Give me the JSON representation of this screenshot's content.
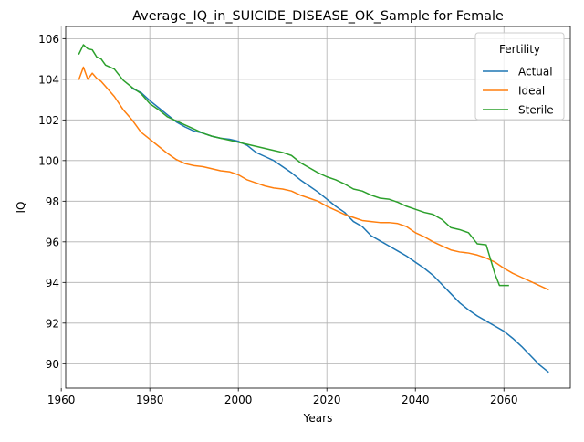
{
  "chart_data": {
    "type": "line",
    "title": "Average_IQ_in_SUICIDE_DISEASE_OK_Sample for Female",
    "xlabel": "Years",
    "ylabel": "IQ",
    "xlim": [
      1961,
      2075
    ],
    "ylim": [
      88.8,
      106.6
    ],
    "xticks": [
      1960,
      1980,
      2000,
      2020,
      2040,
      2060
    ],
    "yticks": [
      90,
      92,
      94,
      96,
      98,
      100,
      102,
      104,
      106
    ],
    "grid": true,
    "legend": {
      "title": "Fertility",
      "placement": "top-right"
    },
    "series": [
      {
        "name": "Actual",
        "color": "#1f77b4",
        "x": [
          1976,
          1978,
          1980,
          1982,
          1984,
          1986,
          1988,
          1990,
          1992,
          1994,
          1996,
          1998,
          2000,
          2002,
          2004,
          2006,
          2008,
          2010,
          2012,
          2014,
          2016,
          2018,
          2020,
          2022,
          2024,
          2026,
          2028,
          2030,
          2032,
          2034,
          2036,
          2038,
          2040,
          2042,
          2044,
          2046,
          2048,
          2050,
          2052,
          2054,
          2056,
          2058,
          2060,
          2062,
          2064,
          2066,
          2068,
          2070
        ],
        "y": [
          103.55,
          103.35,
          102.95,
          102.6,
          102.25,
          101.9,
          101.65,
          101.45,
          101.35,
          101.2,
          101.1,
          101.05,
          100.95,
          100.75,
          100.4,
          100.2,
          100.0,
          99.7,
          99.4,
          99.05,
          98.75,
          98.45,
          98.1,
          97.75,
          97.45,
          97.0,
          96.75,
          96.3,
          96.05,
          95.8,
          95.55,
          95.3,
          95.0,
          94.7,
          94.35,
          93.9,
          93.45,
          93.0,
          92.65,
          92.35,
          92.1,
          91.85,
          91.6,
          91.25,
          90.85,
          90.4,
          89.95,
          89.6
        ]
      },
      {
        "name": "Ideal",
        "color": "#ff7f0e",
        "x": [
          1964,
          1965,
          1966,
          1967,
          1968,
          1969,
          1970,
          1972,
          1974,
          1976,
          1978,
          1980,
          1982,
          1984,
          1986,
          1988,
          1990,
          1992,
          1994,
          1996,
          1998,
          2000,
          2002,
          2004,
          2006,
          2008,
          2010,
          2012,
          2014,
          2016,
          2018,
          2020,
          2022,
          2024,
          2026,
          2028,
          2030,
          2032,
          2034,
          2036,
          2038,
          2040,
          2042,
          2044,
          2046,
          2048,
          2050,
          2052,
          2054,
          2056,
          2058,
          2060,
          2062,
          2064,
          2066,
          2068,
          2070
        ],
        "y": [
          104.0,
          104.6,
          104.0,
          104.3,
          104.05,
          103.9,
          103.65,
          103.15,
          102.5,
          102.0,
          101.4,
          101.05,
          100.7,
          100.35,
          100.05,
          99.85,
          99.75,
          99.7,
          99.6,
          99.5,
          99.45,
          99.3,
          99.05,
          98.9,
          98.75,
          98.65,
          98.6,
          98.5,
          98.3,
          98.15,
          98.0,
          97.75,
          97.55,
          97.35,
          97.2,
          97.05,
          97.0,
          96.95,
          96.95,
          96.9,
          96.75,
          96.45,
          96.25,
          96.0,
          95.8,
          95.6,
          95.5,
          95.45,
          95.35,
          95.2,
          95.0,
          94.7,
          94.45,
          94.25,
          94.05,
          93.85,
          93.65
        ]
      },
      {
        "name": "Sterile",
        "color": "#2ca02c",
        "x": [
          1964,
          1965,
          1966,
          1967,
          1968,
          1969,
          1970,
          1972,
          1974,
          1976,
          1978,
          1980,
          1982,
          1984,
          1986,
          1988,
          1990,
          1992,
          1994,
          1996,
          1998,
          2000,
          2002,
          2004,
          2006,
          2008,
          2010,
          2012,
          2014,
          2016,
          2018,
          2020,
          2022,
          2024,
          2026,
          2028,
          2030,
          2032,
          2034,
          2036,
          2038,
          2040,
          2042,
          2044,
          2046,
          2048,
          2050,
          2052,
          2054,
          2056,
          2058,
          2059,
          2060,
          2061
        ],
        "y": [
          105.25,
          105.7,
          105.5,
          105.45,
          105.1,
          105.0,
          104.7,
          104.5,
          103.95,
          103.6,
          103.3,
          102.8,
          102.5,
          102.15,
          101.95,
          101.75,
          101.55,
          101.35,
          101.2,
          101.1,
          101.0,
          100.9,
          100.8,
          100.7,
          100.6,
          100.5,
          100.4,
          100.25,
          99.9,
          99.65,
          99.4,
          99.2,
          99.05,
          98.85,
          98.6,
          98.5,
          98.3,
          98.15,
          98.1,
          97.95,
          97.75,
          97.6,
          97.45,
          97.35,
          97.1,
          96.7,
          96.6,
          96.45,
          95.9,
          95.85,
          94.4,
          93.85,
          93.85,
          93.85
        ]
      }
    ]
  }
}
